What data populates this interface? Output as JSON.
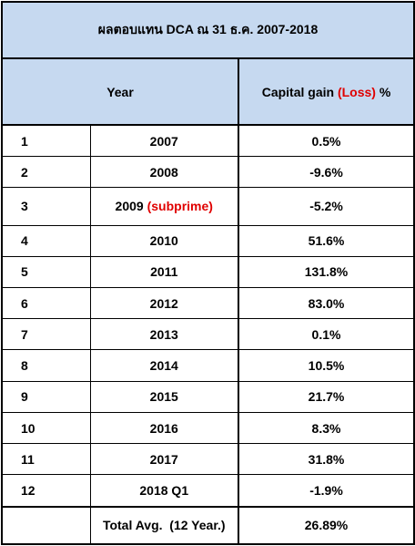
{
  "title": "ผลตอบแทน DCA ณ 31 ธ.ค. 2007-2018",
  "header": {
    "year": "Year",
    "gain_prefix": "Capital gain ",
    "gain_loss": "(Loss)",
    "gain_suffix": " %"
  },
  "rows": [
    {
      "no": "1",
      "year": "2007",
      "note": "",
      "value": "0.5%",
      "negative": false
    },
    {
      "no": "2",
      "year": "2008",
      "note": "",
      "value": "-9.6%",
      "negative": true
    },
    {
      "no": "3",
      "year": "2009 ",
      "note": "(subprime)",
      "value": "-5.2%",
      "negative": true
    },
    {
      "no": "4",
      "year": "2010",
      "note": "",
      "value": "51.6%",
      "negative": false
    },
    {
      "no": "5",
      "year": "2011",
      "note": "",
      "value": "131.8%",
      "negative": false
    },
    {
      "no": "6",
      "year": "2012",
      "note": "",
      "value": "83.0%",
      "negative": false
    },
    {
      "no": "7",
      "year": "2013",
      "note": "",
      "value": "0.1%",
      "negative": false
    },
    {
      "no": "8",
      "year": "2014",
      "note": "",
      "value": "10.5%",
      "negative": false
    },
    {
      "no": "9",
      "year": "2015",
      "note": "",
      "value": "21.7%",
      "negative": false
    },
    {
      "no": "10",
      "year": "2016",
      "note": "",
      "value": "8.3%",
      "negative": false
    },
    {
      "no": "11",
      "year": "2017",
      "note": "",
      "value": "31.8%",
      "negative": false
    },
    {
      "no": "12",
      "year": "2018 Q1",
      "note": "",
      "value": "-1.9%",
      "negative": true
    }
  ],
  "total": {
    "label": "Total Avg.  (12 Year.)",
    "value": "26.89%"
  },
  "colors": {
    "header_bg": "#c6d9f0",
    "negative": "#e00000"
  }
}
